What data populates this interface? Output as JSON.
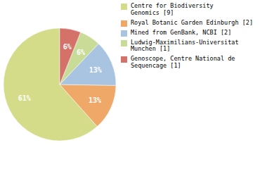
{
  "chart_data": {
    "type": "pie",
    "categories": [
      "Centre for Biodiversity\nGenomics [9]",
      "Royal Botanic Garden Edinburgh [2]",
      "Mined from GenBank, NCBI [2]",
      "Ludwig-Maximilians-Universitat\nMunchen [1]",
      "Genoscope, Centre National de\nSequencage [1]"
    ],
    "values": [
      61,
      13,
      13,
      6,
      6
    ],
    "value_labels": [
      "61%",
      "13%",
      "13%",
      "6%",
      "6%"
    ],
    "colors": [
      "#d4dc8a",
      "#f0a868",
      "#a8c4e0",
      "#c8dc98",
      "#d4726a"
    ],
    "data_labels": true,
    "legend": "upper right"
  }
}
